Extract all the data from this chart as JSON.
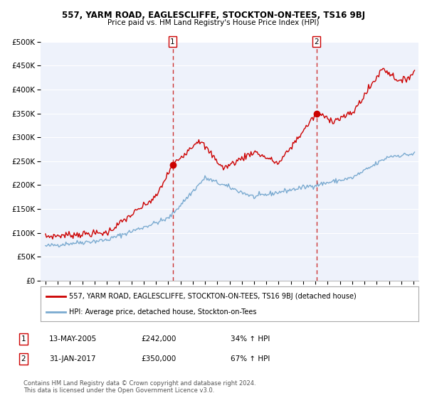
{
  "title1": "557, YARM ROAD, EAGLESCLIFFE, STOCKTON-ON-TEES, TS16 9BJ",
  "title2": "Price paid vs. HM Land Registry's House Price Index (HPI)",
  "ylim": [
    0,
    500000
  ],
  "yticks": [
    0,
    50000,
    100000,
    150000,
    200000,
    250000,
    300000,
    350000,
    400000,
    450000,
    500000
  ],
  "ytick_labels": [
    "£0",
    "£50K",
    "£100K",
    "£150K",
    "£200K",
    "£250K",
    "£300K",
    "£350K",
    "£400K",
    "£450K",
    "£500K"
  ],
  "xlim_start": 1994.6,
  "xlim_end": 2025.4,
  "xticks": [
    1995,
    1996,
    1997,
    1998,
    1999,
    2000,
    2001,
    2002,
    2003,
    2004,
    2005,
    2006,
    2007,
    2008,
    2009,
    2010,
    2011,
    2012,
    2013,
    2014,
    2015,
    2016,
    2017,
    2018,
    2019,
    2020,
    2021,
    2022,
    2023,
    2024,
    2025
  ],
  "sale1_x": 2005.36,
  "sale1_y": 242000,
  "sale2_x": 2017.08,
  "sale2_y": 350000,
  "sale1_date": "13-MAY-2005",
  "sale1_price": "£242,000",
  "sale1_hpi": "34% ↑ HPI",
  "sale2_date": "31-JAN-2017",
  "sale2_price": "£350,000",
  "sale2_hpi": "67% ↑ HPI",
  "legend1_label": "557, YARM ROAD, EAGLESCLIFFE, STOCKTON-ON-TEES, TS16 9BJ (detached house)",
  "legend2_label": "HPI: Average price, detached house, Stockton-on-Tees",
  "house_color": "#cc0000",
  "hpi_color": "#7aaad0",
  "background_color": "#ffffff",
  "plot_bg_color": "#eef2fb",
  "grid_color": "#ffffff",
  "footer_text": "Contains HM Land Registry data © Crown copyright and database right 2024.\nThis data is licensed under the Open Government Licence v3.0.",
  "sale_marker_color": "#cc0000",
  "sale_vline_color": "#cc3333"
}
